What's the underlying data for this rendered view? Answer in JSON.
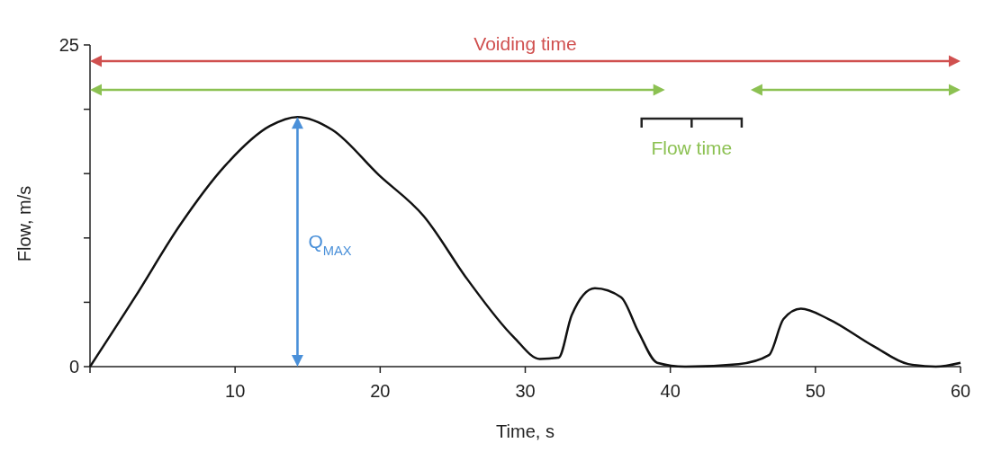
{
  "chart_data": {
    "type": "line",
    "xlabel": "Time, s",
    "ylabel": "Flow, m/s",
    "xlim": [
      0,
      60
    ],
    "ylim": [
      0,
      25
    ],
    "xticks": [
      {
        "value": 0,
        "label": null
      },
      10,
      20,
      30,
      40,
      50,
      60
    ],
    "yticks": [
      0,
      {
        "value": 5,
        "label": null
      },
      {
        "value": 10,
        "label": null
      },
      {
        "value": 15,
        "label": null
      },
      {
        "value": 20,
        "label": null
      },
      25
    ],
    "series": [
      {
        "color": "#111111",
        "x": [
          0,
          3.1,
          6.2,
          9.3,
          12.4,
          14.3,
          16.7,
          19.9,
          23,
          26,
          29.2,
          31,
          32.3,
          33.2,
          34.8,
          36.6,
          37.8,
          39.1,
          41,
          44.7,
          46.8,
          47.8,
          49,
          50.9,
          54,
          56.4,
          58.3,
          60
        ],
        "values": [
          0,
          5.4,
          11,
          15.6,
          18.7,
          19.4,
          18.4,
          14.9,
          11.7,
          6.8,
          2.3,
          0.6,
          0.7,
          4,
          6.1,
          5.4,
          2.7,
          0.3,
          0,
          0.2,
          0.9,
          3.7,
          4.5,
          3.7,
          1.6,
          0.2,
          0,
          0.3
        ]
      }
    ],
    "annotations": [
      "Voiding time",
      "Flow time",
      "Q$_{MAX}$"
    ],
    "grid": false,
    "marker": "none",
    "line_style": "solid"
  }
}
